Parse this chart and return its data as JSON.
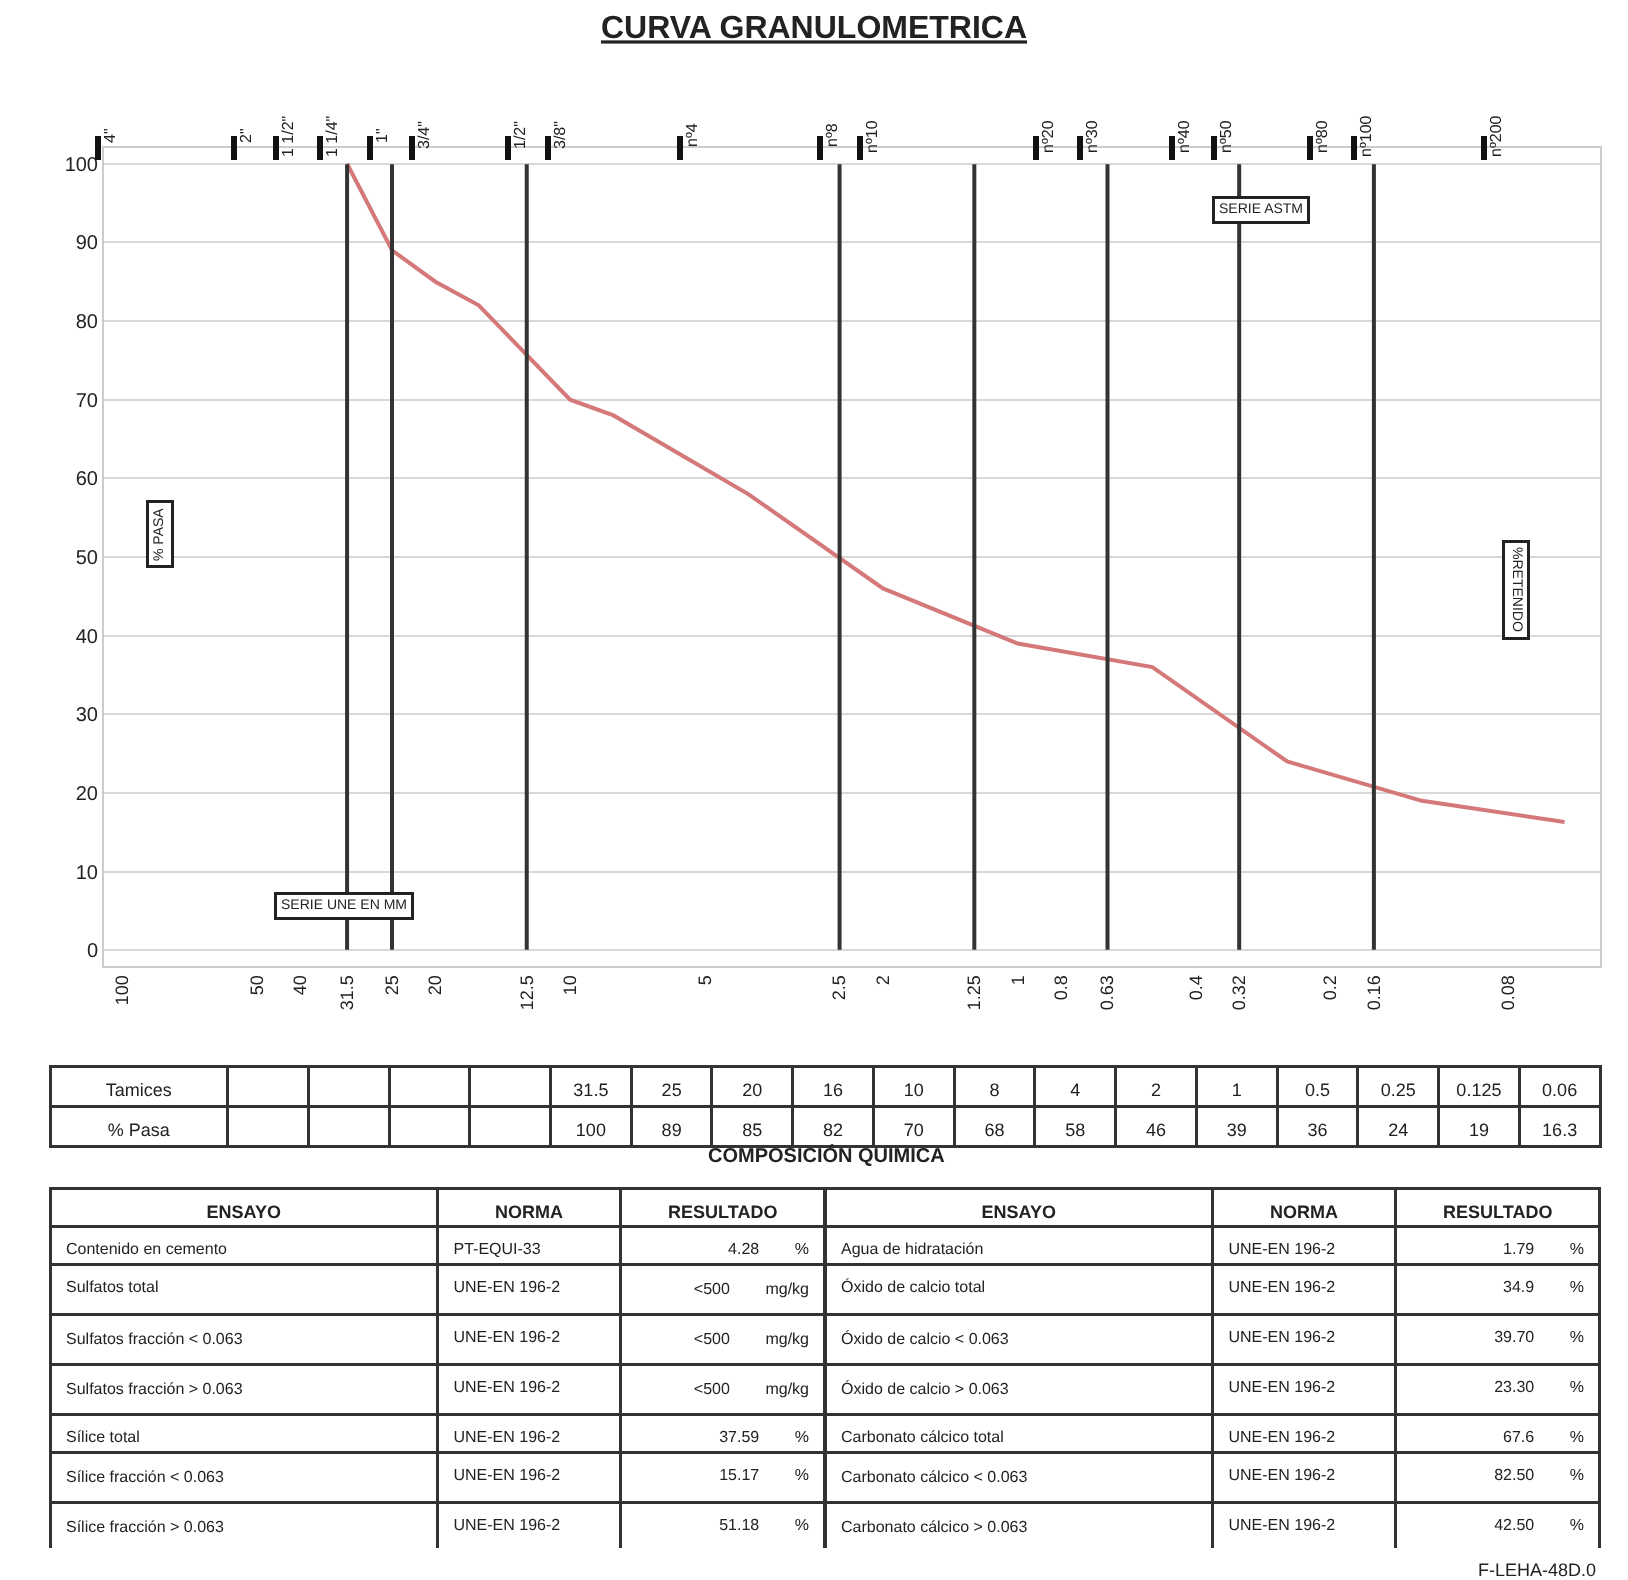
{
  "chart_data": [
    {
      "type": "line",
      "title": "CURVA GRANULOMETRICA",
      "ylabel": "% PASA",
      "x": [
        31.5,
        25,
        20,
        16,
        10,
        8,
        4,
        2,
        1,
        0.5,
        0.25,
        0.125,
        0.06
      ],
      "values": [
        100,
        89,
        85,
        82,
        70,
        68,
        58,
        46,
        39,
        36,
        24,
        19,
        16.3
      ],
      "color": "#d4787a",
      "marker": "none",
      "line_style": "solid",
      "log": "x",
      "grid": "y",
      "xlim": [
        110,
        0.05
      ],
      "xticks": [
        100,
        50,
        40,
        31.5,
        25,
        20,
        12.5,
        10,
        5,
        2.5,
        2,
        1.25,
        1,
        0.8,
        0.63,
        0.4,
        0.32,
        0.2,
        0.16,
        0.08
      ],
      "ylim": [
        -2,
        102
      ],
      "yticks": [
        0,
        10,
        20,
        30,
        40,
        50,
        60,
        70,
        80,
        90,
        100
      ],
      "ref_lines": [
        {
          "axis": "x",
          "value": 31.5,
          "color": "#333333"
        },
        {
          "axis": "x",
          "value": 25,
          "color": "#333333"
        },
        {
          "axis": "x",
          "value": 12.5,
          "color": "#333333"
        },
        {
          "axis": "x",
          "value": 2.5,
          "color": "#333333"
        },
        {
          "axis": "x",
          "value": 1.25,
          "color": "#333333"
        },
        {
          "axis": "x",
          "value": 0.63,
          "color": "#333333"
        },
        {
          "axis": "x",
          "value": 0.32,
          "color": "#333333"
        },
        {
          "axis": "x",
          "value": 0.16,
          "color": "#333333"
        }
      ],
      "annotations": [
        "SERIE ASTM",
        "SERIE UNE EN MM",
        "%RETENIDO",
        "4\"",
        "2\"",
        "1 1/2\"",
        "1 1/4\"",
        "1\"",
        "3/4\"",
        "1/2\"",
        "3/8\"",
        "nº4",
        "nº8",
        "nº10",
        "nº20",
        "nº30",
        "nº40",
        "nº50",
        "nº80",
        "nº100",
        "nº200"
      ]
    },
    {
      "type": "other",
      "categories": [
        "Tamices",
        "% Pasa"
      ],
      "annotations": [
        "31.5",
        "25",
        "20",
        "16",
        "10",
        "8",
        "4",
        "2",
        "1",
        "0.5",
        "0.25",
        "0.125",
        "0.06",
        "100",
        "89",
        "85",
        "82",
        "70",
        "68",
        "58",
        "46",
        "39",
        "36",
        "24",
        "19",
        "16.3"
      ]
    },
    {
      "type": "other",
      "title": "COMPOSICIÓN QUIMICA",
      "categories": [
        "ENSAYO",
        "NORMA",
        "RESULTADO",
        "ENSAYO",
        "NORMA",
        "RESULTADO"
      ],
      "annotations": [
        "Contenido en cemento",
        "PT-EQUI-33",
        "4.28",
        "%",
        "Agua de hidratación",
        "UNE-EN 196-2",
        "1.79",
        "%",
        "Sulfatos total",
        "UNE-EN 196-2",
        "<500",
        "mg/kg",
        "Óxido de calcio total",
        "UNE-EN 196-2",
        "34.9",
        "%",
        "Sulfatos fracción < 0.063",
        "UNE-EN 196-2",
        "<500",
        "mg/kg",
        "Óxido de calcio < 0.063",
        "UNE-EN 196-2",
        "39.70",
        "%",
        "Sulfatos fracción > 0.063",
        "UNE-EN 196-2",
        "<500",
        "mg/kg",
        "Óxido de calcio > 0.063",
        "UNE-EN 196-2",
        "23.30",
        "%",
        "Sílice total",
        "UNE-EN 196-2",
        "37.59",
        "%",
        "Carbonato cálcico total",
        "UNE-EN 196-2",
        "67.6",
        "%",
        "Sílice fracción < 0.063",
        "UNE-EN 196-2",
        "15.17",
        "%",
        "Carbonato cálcico < 0.063",
        "UNE-EN 196-2",
        "82.50",
        "%",
        "Sílice fracción > 0.063",
        "UNE-EN 196-2",
        "51.18",
        "%",
        "Carbonato cálcico > 0.063",
        "UNE-EN 196-2",
        "42.50",
        "%",
        "F-LEHA-48D.0"
      ]
    }
  ]
}
